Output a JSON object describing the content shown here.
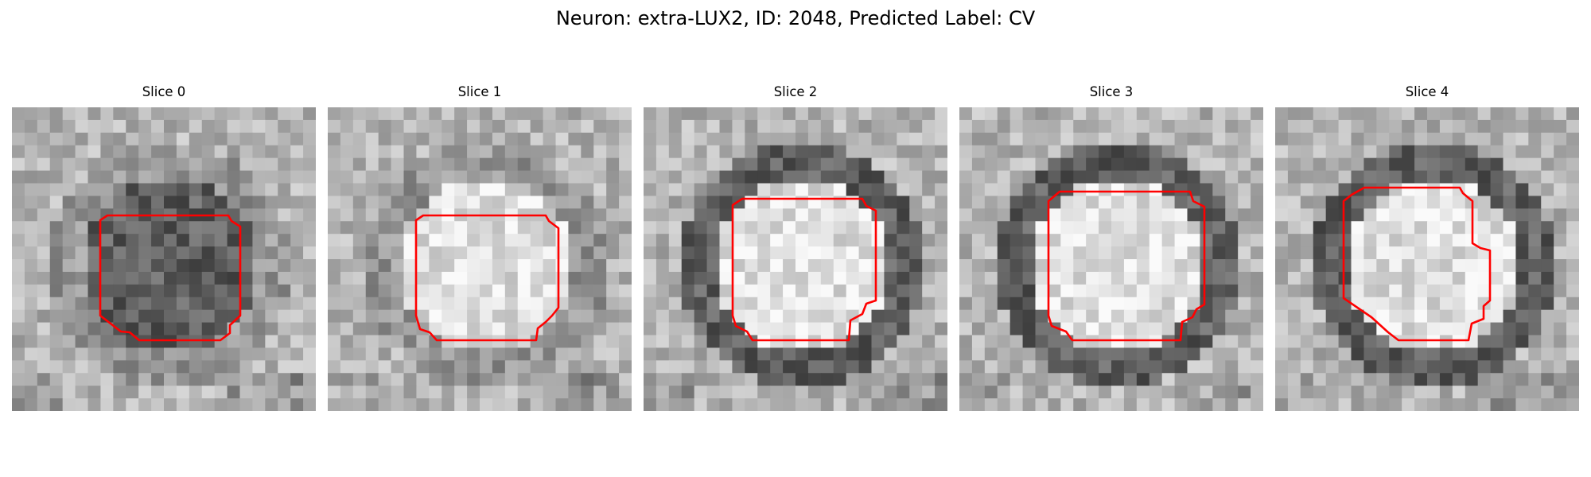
{
  "figure": {
    "title": "Neuron: extra-LUX2, ID: 2048, Predicted Label: CV"
  },
  "panels": [
    {
      "title": "Slice 0",
      "seed": 11,
      "center_tone": "dark",
      "ring_tone": "medium"
    },
    {
      "title": "Slice 1",
      "seed": 23,
      "center_tone": "bright",
      "ring_tone": "medium"
    },
    {
      "title": "Slice 2",
      "seed": 37,
      "center_tone": "bright",
      "ring_tone": "dark"
    },
    {
      "title": "Slice 3",
      "seed": 41,
      "center_tone": "bright",
      "ring_tone": "dark"
    },
    {
      "title": "Slice 4",
      "seed": 53,
      "center_tone": "bright",
      "ring_tone": "dark"
    }
  ],
  "colors": {
    "contour": "#ff0000",
    "background": "#ffffff"
  },
  "image_style": "grayscale",
  "contour_shape": "octagonal-outline"
}
